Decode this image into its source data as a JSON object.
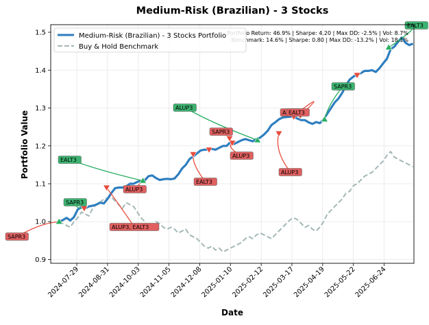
{
  "chart_data": {
    "type": "line",
    "title": "Medium-Risk (Brazilian) - 3 Stocks",
    "xlabel": "Date",
    "ylabel": "Portfolio Value",
    "ylim": [
      0.89,
      1.52
    ],
    "x_range": [
      "2024-07-01",
      "2025-07-26"
    ],
    "grid": true,
    "legend_position": "top-left",
    "x_ticks": [
      "2024-07-29",
      "2024-08-31",
      "2024-10-03",
      "2024-11-05",
      "2024-12-08",
      "2025-01-10",
      "2025-02-12",
      "2025-03-17",
      "2025-04-19",
      "2025-05-22",
      "2025-06-24"
    ],
    "y_ticks": [
      0.9,
      1.0,
      1.1,
      1.2,
      1.3,
      1.4,
      1.5
    ],
    "y_tick_labels": [
      "0.9",
      "1.0",
      "1.1",
      "1.2",
      "1.3",
      "1.4",
      "1.5"
    ],
    "colors": {
      "portfolio": "#2e7ebf",
      "benchmark": "#a3b6b6",
      "buy": "#27ae60",
      "sell": "#e74c3c",
      "buy_label_bg": "#3cb371",
      "sell_label_bg": "#e06060"
    },
    "series": [
      {
        "name": "Medium-Risk (Brazilian) - 3 Stocks Portfolio",
        "style": "solid",
        "points": [
          [
            "2024-07-10",
            1.0
          ],
          [
            "2024-07-14",
            1.004
          ],
          [
            "2024-07-18",
            1.01
          ],
          [
            "2024-07-22",
            1.003
          ],
          [
            "2024-07-26",
            1.012
          ],
          [
            "2024-07-30",
            1.032
          ],
          [
            "2024-08-03",
            1.038
          ],
          [
            "2024-08-07",
            1.035
          ],
          [
            "2024-08-11",
            1.04
          ],
          [
            "2024-08-15",
            1.042
          ],
          [
            "2024-08-19",
            1.045
          ],
          [
            "2024-08-23",
            1.05
          ],
          [
            "2024-08-27",
            1.048
          ],
          [
            "2024-08-31",
            1.06
          ],
          [
            "2024-09-04",
            1.075
          ],
          [
            "2024-09-08",
            1.088
          ],
          [
            "2024-09-12",
            1.09
          ],
          [
            "2024-09-16",
            1.09
          ],
          [
            "2024-09-20",
            1.093
          ],
          [
            "2024-09-24",
            1.1
          ],
          [
            "2024-09-28",
            1.1
          ],
          [
            "2024-10-02",
            1.105
          ],
          [
            "2024-10-06",
            1.108
          ],
          [
            "2024-10-10",
            1.109
          ],
          [
            "2024-10-14",
            1.12
          ],
          [
            "2024-10-18",
            1.122
          ],
          [
            "2024-10-22",
            1.115
          ],
          [
            "2024-10-26",
            1.11
          ],
          [
            "2024-10-30",
            1.112
          ],
          [
            "2024-11-03",
            1.113
          ],
          [
            "2024-11-07",
            1.112
          ],
          [
            "2024-11-11",
            1.114
          ],
          [
            "2024-11-15",
            1.125
          ],
          [
            "2024-11-19",
            1.14
          ],
          [
            "2024-11-23",
            1.15
          ],
          [
            "2024-11-27",
            1.165
          ],
          [
            "2024-12-01",
            1.172
          ],
          [
            "2024-12-05",
            1.18
          ],
          [
            "2024-12-09",
            1.188
          ],
          [
            "2024-12-13",
            1.19
          ],
          [
            "2024-12-17",
            1.19
          ],
          [
            "2024-12-21",
            1.192
          ],
          [
            "2024-12-25",
            1.19
          ],
          [
            "2024-12-29",
            1.195
          ],
          [
            "2025-01-02",
            1.2
          ],
          [
            "2025-01-06",
            1.2
          ],
          [
            "2025-01-10",
            1.21
          ],
          [
            "2025-01-14",
            1.205
          ],
          [
            "2025-01-18",
            1.21
          ],
          [
            "2025-01-22",
            1.215
          ],
          [
            "2025-01-26",
            1.218
          ],
          [
            "2025-01-30",
            1.215
          ],
          [
            "2025-02-03",
            1.212
          ],
          [
            "2025-02-07",
            1.218
          ],
          [
            "2025-02-11",
            1.222
          ],
          [
            "2025-02-15",
            1.23
          ],
          [
            "2025-02-19",
            1.24
          ],
          [
            "2025-02-23",
            1.255
          ],
          [
            "2025-02-27",
            1.262
          ],
          [
            "2025-03-03",
            1.27
          ],
          [
            "2025-03-07",
            1.275
          ],
          [
            "2025-03-11",
            1.276
          ],
          [
            "2025-03-15",
            1.277
          ],
          [
            "2025-03-19",
            1.277
          ],
          [
            "2025-03-23",
            1.272
          ],
          [
            "2025-03-27",
            1.268
          ],
          [
            "2025-03-31",
            1.268
          ],
          [
            "2025-04-04",
            1.262
          ],
          [
            "2025-04-08",
            1.258
          ],
          [
            "2025-04-12",
            1.263
          ],
          [
            "2025-04-16",
            1.26
          ],
          [
            "2025-04-20",
            1.27
          ],
          [
            "2025-04-24",
            1.285
          ],
          [
            "2025-04-28",
            1.3
          ],
          [
            "2025-05-02",
            1.315
          ],
          [
            "2025-05-06",
            1.325
          ],
          [
            "2025-05-10",
            1.34
          ],
          [
            "2025-05-14",
            1.36
          ],
          [
            "2025-05-18",
            1.375
          ],
          [
            "2025-05-22",
            1.383
          ],
          [
            "2025-05-26",
            1.388
          ],
          [
            "2025-05-30",
            1.392
          ],
          [
            "2025-06-03",
            1.398
          ],
          [
            "2025-06-07",
            1.398
          ],
          [
            "2025-06-11",
            1.4
          ],
          [
            "2025-06-15",
            1.395
          ],
          [
            "2025-06-19",
            1.405
          ],
          [
            "2025-06-23",
            1.418
          ],
          [
            "2025-06-27",
            1.43
          ],
          [
            "2025-07-01",
            1.455
          ],
          [
            "2025-07-05",
            1.462
          ],
          [
            "2025-07-09",
            1.475
          ],
          [
            "2025-07-13",
            1.486
          ],
          [
            "2025-07-17",
            1.472
          ],
          [
            "2025-07-21",
            1.466
          ],
          [
            "2025-07-25",
            1.47
          ]
        ]
      },
      {
        "name": "Buy & Hold Benchmark",
        "style": "dashed",
        "points": [
          [
            "2024-07-10",
            1.0
          ],
          [
            "2024-07-14",
            0.995
          ],
          [
            "2024-07-18",
            0.99
          ],
          [
            "2024-07-22",
            0.985
          ],
          [
            "2024-07-26",
            1.0
          ],
          [
            "2024-07-30",
            1.01
          ],
          [
            "2024-08-03",
            1.025
          ],
          [
            "2024-08-07",
            1.02
          ],
          [
            "2024-08-11",
            1.015
          ],
          [
            "2024-08-15",
            1.035
          ],
          [
            "2024-08-19",
            1.045
          ],
          [
            "2024-08-23",
            1.05
          ],
          [
            "2024-08-27",
            1.06
          ],
          [
            "2024-08-31",
            1.062
          ],
          [
            "2024-09-04",
            1.065
          ],
          [
            "2024-09-08",
            1.055
          ],
          [
            "2024-09-12",
            1.045
          ],
          [
            "2024-09-16",
            1.035
          ],
          [
            "2024-09-20",
            1.05
          ],
          [
            "2024-09-24",
            1.045
          ],
          [
            "2024-09-28",
            1.04
          ],
          [
            "2024-10-02",
            1.025
          ],
          [
            "2024-10-06",
            1.01
          ],
          [
            "2024-10-10",
            1.0
          ],
          [
            "2024-10-14",
            0.985
          ],
          [
            "2024-10-18",
            0.99
          ],
          [
            "2024-10-22",
            1.0
          ],
          [
            "2024-10-26",
            0.995
          ],
          [
            "2024-10-30",
            0.985
          ],
          [
            "2024-11-03",
            0.98
          ],
          [
            "2024-11-07",
            0.985
          ],
          [
            "2024-11-11",
            0.98
          ],
          [
            "2024-11-15",
            0.97
          ],
          [
            "2024-11-19",
            0.975
          ],
          [
            "2024-11-23",
            0.98
          ],
          [
            "2024-11-27",
            0.965
          ],
          [
            "2024-12-01",
            0.96
          ],
          [
            "2024-12-05",
            0.955
          ],
          [
            "2024-12-09",
            0.945
          ],
          [
            "2024-12-13",
            0.935
          ],
          [
            "2024-12-17",
            0.93
          ],
          [
            "2024-12-21",
            0.935
          ],
          [
            "2024-12-25",
            0.925
          ],
          [
            "2024-12-29",
            0.93
          ],
          [
            "2025-01-02",
            0.92
          ],
          [
            "2025-01-06",
            0.925
          ],
          [
            "2025-01-10",
            0.93
          ],
          [
            "2025-01-14",
            0.935
          ],
          [
            "2025-01-18",
            0.94
          ],
          [
            "2025-01-22",
            0.945
          ],
          [
            "2025-01-26",
            0.955
          ],
          [
            "2025-01-30",
            0.96
          ],
          [
            "2025-02-03",
            0.955
          ],
          [
            "2025-02-07",
            0.965
          ],
          [
            "2025-02-11",
            0.97
          ],
          [
            "2025-02-15",
            0.965
          ],
          [
            "2025-02-19",
            0.96
          ],
          [
            "2025-02-23",
            0.955
          ],
          [
            "2025-02-27",
            0.965
          ],
          [
            "2025-03-03",
            0.975
          ],
          [
            "2025-03-07",
            0.985
          ],
          [
            "2025-03-11",
            0.995
          ],
          [
            "2025-03-15",
            1.005
          ],
          [
            "2025-03-19",
            1.01
          ],
          [
            "2025-03-23",
            1.005
          ],
          [
            "2025-03-27",
            0.995
          ],
          [
            "2025-03-31",
            0.985
          ],
          [
            "2025-04-04",
            0.99
          ],
          [
            "2025-04-08",
            0.98
          ],
          [
            "2025-04-12",
            0.975
          ],
          [
            "2025-04-16",
            0.985
          ],
          [
            "2025-04-20",
            1.0
          ],
          [
            "2025-04-24",
            1.02
          ],
          [
            "2025-04-28",
            1.03
          ],
          [
            "2025-05-02",
            1.04
          ],
          [
            "2025-05-06",
            1.05
          ],
          [
            "2025-05-10",
            1.06
          ],
          [
            "2025-05-14",
            1.075
          ],
          [
            "2025-05-18",
            1.08
          ],
          [
            "2025-05-22",
            1.095
          ],
          [
            "2025-05-26",
            1.1
          ],
          [
            "2025-05-30",
            1.11
          ],
          [
            "2025-06-03",
            1.12
          ],
          [
            "2025-06-07",
            1.125
          ],
          [
            "2025-06-11",
            1.13
          ],
          [
            "2025-06-15",
            1.14
          ],
          [
            "2025-06-19",
            1.15
          ],
          [
            "2025-06-23",
            1.16
          ],
          [
            "2025-06-27",
            1.175
          ],
          [
            "2025-07-01",
            1.185
          ],
          [
            "2025-07-05",
            1.17
          ],
          [
            "2025-07-09",
            1.165
          ],
          [
            "2025-07-13",
            1.16
          ],
          [
            "2025-07-17",
            1.155
          ],
          [
            "2025-07-21",
            1.15
          ],
          [
            "2025-07-25",
            1.145
          ]
        ]
      }
    ],
    "signals": [
      {
        "kind": "buy",
        "date": "2024-07-10",
        "value": 1.0
      },
      {
        "kind": "sell",
        "date": "2024-08-06",
        "value": 1.035
      },
      {
        "kind": "sell",
        "date": "2024-08-30",
        "value": 1.09
      },
      {
        "kind": "buy",
        "date": "2024-10-08",
        "value": 1.108
      },
      {
        "kind": "sell",
        "date": "2024-12-01",
        "value": 1.178
      },
      {
        "kind": "sell",
        "date": "2024-12-18",
        "value": 1.19
      },
      {
        "kind": "sell",
        "date": "2025-01-12",
        "value": 1.208
      },
      {
        "kind": "sell",
        "date": "2025-01-09",
        "value": 1.22
      },
      {
        "kind": "buy",
        "date": "2025-02-08",
        "value": 1.215
      },
      {
        "kind": "sell",
        "date": "2025-03-03",
        "value": 1.233
      },
      {
        "kind": "sell",
        "date": "2025-03-19",
        "value": 1.277
      },
      {
        "kind": "sell",
        "date": "2025-03-26",
        "value": 1.28
      },
      {
        "kind": "buy",
        "date": "2025-04-21",
        "value": 1.27
      },
      {
        "kind": "sell",
        "date": "2025-05-26",
        "value": 1.387
      },
      {
        "kind": "buy",
        "date": "2025-06-29",
        "value": 1.46
      }
    ],
    "annotations": [
      {
        "text": "SAPR3",
        "kind": "sell",
        "target": 0
      },
      {
        "text": "SAPR3",
        "kind": "buy",
        "target": 1
      },
      {
        "text": "ALUP3, EALT3",
        "kind": "sell",
        "target": 2
      },
      {
        "text": "EALT3",
        "kind": "buy",
        "target": 3
      },
      {
        "text": "ALUP3",
        "kind": "sell",
        "target": 3
      },
      {
        "text": "ALUP3",
        "kind": "buy",
        "target": 8
      },
      {
        "text": "EALT3",
        "kind": "sell",
        "target": 4
      },
      {
        "text": "SAPR3",
        "kind": "sell",
        "target": 6
      },
      {
        "text": "ALUP3",
        "kind": "sell",
        "target": 6
      },
      {
        "text": "ALUP3",
        "kind": "sell",
        "target": 9
      },
      {
        "text": "SAPR3",
        "kind": "buy",
        "target": 12
      },
      {
        "text": "EALT3",
        "kind": "buy",
        "target": 14
      },
      {
        "text": "ALUP3",
        "kind": "sell",
        "target": 11
      },
      {
        "text": "EALT3",
        "kind": "sell",
        "target": 11
      }
    ],
    "stats": [
      "Portfolio Return: 46.9% | Sharpe: 4.20 | Max DD: -2.5% | Vol: 8.7%",
      "Benchmark: 14.6% | Sharpe: 0.80 | Max DD: -13.2% | Vol: 18.1%"
    ]
  }
}
